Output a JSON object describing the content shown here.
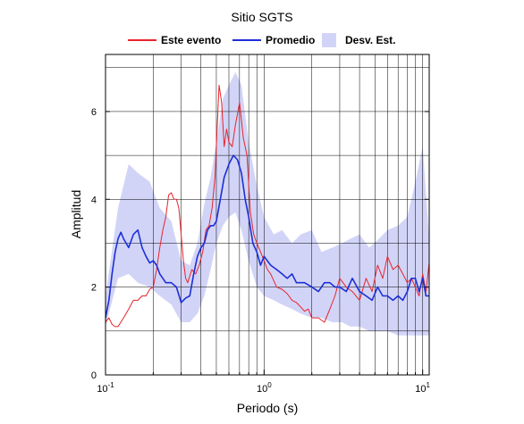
{
  "chart_data": {
    "type": "line",
    "title": "Sitio SGTS",
    "xlabel": "Periodo (s)",
    "ylabel": "Amplitud",
    "xscale": "log",
    "xlim": [
      0.1,
      11
    ],
    "ylim": [
      0,
      7.3
    ],
    "x_ticks": [
      {
        "value": 0.1,
        "base": "10",
        "exp": "-1"
      },
      {
        "value": 1,
        "base": "10",
        "exp": "0"
      },
      {
        "value": 10,
        "base": "10",
        "exp": "1"
      }
    ],
    "y_ticks": [
      {
        "value": 0,
        "label": "0"
      },
      {
        "value": 2,
        "label": "2"
      },
      {
        "value": 4,
        "label": "4"
      },
      {
        "value": 6,
        "label": "6"
      }
    ],
    "grid": true,
    "legend_position": "top-center",
    "legend": [
      {
        "label": "Este evento",
        "kind": "line",
        "color": "#e8242c"
      },
      {
        "label": "Promedio",
        "kind": "line",
        "color": "#1c2fd6"
      },
      {
        "label": "Desv. Est.",
        "kind": "band",
        "color": "#d2d4f7"
      }
    ],
    "band": {
      "name": "Desv. Est.",
      "color": "#d2d4f7",
      "x": [
        0.1,
        0.12,
        0.14,
        0.16,
        0.19,
        0.22,
        0.26,
        0.3,
        0.34,
        0.38,
        0.42,
        0.46,
        0.5,
        0.55,
        0.6,
        0.66,
        0.72,
        0.8,
        0.9,
        1.0,
        1.15,
        1.3,
        1.5,
        1.7,
        2.0,
        2.3,
        2.7,
        3.1,
        3.5,
        4.0,
        4.6,
        5.3,
        6.0,
        7.0,
        8.0,
        9.0,
        10.0,
        11.0
      ],
      "upper": [
        1.8,
        3.8,
        4.8,
        4.6,
        4.4,
        3.8,
        3.5,
        2.6,
        2.5,
        3.0,
        3.9,
        4.5,
        5.3,
        6.3,
        6.6,
        6.9,
        6.6,
        5.3,
        4.3,
        3.6,
        3.2,
        3.3,
        3.0,
        3.2,
        3.3,
        2.8,
        2.9,
        3.0,
        3.1,
        3.2,
        2.9,
        3.1,
        3.3,
        3.4,
        3.6,
        4.4,
        5.2,
        3.1
      ],
      "lower": [
        1.1,
        2.2,
        2.3,
        2.1,
        2.0,
        1.8,
        1.6,
        1.2,
        1.2,
        1.4,
        1.8,
        2.4,
        3.0,
        3.4,
        3.6,
        3.7,
        3.3,
        2.6,
        2.0,
        1.8,
        1.7,
        1.6,
        1.5,
        1.4,
        1.3,
        1.3,
        1.2,
        1.2,
        1.1,
        1.1,
        1.0,
        1.0,
        1.0,
        0.9,
        0.9,
        0.9,
        0.9,
        0.9
      ]
    },
    "series": [
      {
        "name": "Este evento",
        "color": "#e8242c",
        "x": [
          0.1,
          0.105,
          0.11,
          0.115,
          0.12,
          0.13,
          0.14,
          0.15,
          0.16,
          0.17,
          0.18,
          0.19,
          0.2,
          0.21,
          0.22,
          0.23,
          0.24,
          0.25,
          0.26,
          0.27,
          0.28,
          0.29,
          0.3,
          0.31,
          0.32,
          0.33,
          0.35,
          0.37,
          0.39,
          0.41,
          0.43,
          0.45,
          0.47,
          0.49,
          0.5,
          0.52,
          0.54,
          0.56,
          0.58,
          0.6,
          0.63,
          0.66,
          0.7,
          0.74,
          0.78,
          0.82,
          0.86,
          0.9,
          0.95,
          1.0,
          1.05,
          1.1,
          1.2,
          1.3,
          1.4,
          1.5,
          1.6,
          1.7,
          1.8,
          1.9,
          2.0,
          2.2,
          2.4,
          2.6,
          2.8,
          3.0,
          3.3,
          3.6,
          4.0,
          4.4,
          4.8,
          5.2,
          5.6,
          6.0,
          6.5,
          7.0,
          7.5,
          8.0,
          8.5,
          9.0,
          9.5,
          10.0,
          10.5,
          11.0
        ],
        "y": [
          1.2,
          1.3,
          1.15,
          1.1,
          1.1,
          1.3,
          1.5,
          1.7,
          1.7,
          1.8,
          1.8,
          1.95,
          2.0,
          2.4,
          2.9,
          3.3,
          3.6,
          4.1,
          4.15,
          4.0,
          4.0,
          3.8,
          3.2,
          2.6,
          2.2,
          2.1,
          2.4,
          2.3,
          2.5,
          2.8,
          3.3,
          3.4,
          3.8,
          4.5,
          5.2,
          6.6,
          6.2,
          5.2,
          5.6,
          5.3,
          5.2,
          5.7,
          6.2,
          5.4,
          5.0,
          3.7,
          3.2,
          3.0,
          2.8,
          2.6,
          2.4,
          2.3,
          2.0,
          1.95,
          1.85,
          1.7,
          1.65,
          1.55,
          1.45,
          1.5,
          1.3,
          1.3,
          1.2,
          1.5,
          1.8,
          2.2,
          2.0,
          1.9,
          1.7,
          2.2,
          1.9,
          2.5,
          2.2,
          2.7,
          2.4,
          2.5,
          2.3,
          2.1,
          2.2,
          2.0,
          1.8,
          2.3,
          1.9,
          2.55
        ]
      },
      {
        "name": "Promedio",
        "color": "#1c2fd6",
        "x": [
          0.1,
          0.105,
          0.11,
          0.115,
          0.12,
          0.125,
          0.13,
          0.14,
          0.15,
          0.16,
          0.17,
          0.18,
          0.19,
          0.2,
          0.21,
          0.22,
          0.23,
          0.24,
          0.26,
          0.28,
          0.3,
          0.32,
          0.34,
          0.36,
          0.38,
          0.4,
          0.42,
          0.44,
          0.46,
          0.48,
          0.5,
          0.53,
          0.56,
          0.6,
          0.64,
          0.68,
          0.72,
          0.76,
          0.8,
          0.85,
          0.9,
          0.95,
          1.0,
          1.1,
          1.2,
          1.3,
          1.4,
          1.5,
          1.6,
          1.8,
          2.0,
          2.2,
          2.4,
          2.6,
          2.8,
          3.0,
          3.3,
          3.6,
          4.0,
          4.4,
          4.8,
          5.2,
          5.6,
          6.0,
          6.5,
          7.0,
          7.5,
          8.0,
          8.5,
          9.0,
          9.5,
          10.0,
          10.5,
          11.0
        ],
        "y": [
          1.3,
          1.7,
          2.3,
          2.8,
          3.1,
          3.25,
          3.1,
          2.9,
          3.2,
          3.3,
          2.9,
          2.7,
          2.55,
          2.6,
          2.5,
          2.3,
          2.2,
          2.1,
          2.1,
          2.0,
          1.65,
          1.75,
          1.8,
          2.3,
          2.7,
          2.9,
          3.0,
          3.3,
          3.4,
          3.4,
          3.5,
          4.0,
          4.5,
          4.8,
          5.0,
          4.9,
          4.6,
          4.0,
          3.6,
          3.0,
          2.8,
          2.5,
          2.7,
          2.5,
          2.4,
          2.3,
          2.2,
          2.3,
          2.1,
          2.1,
          2.0,
          1.9,
          2.1,
          2.1,
          2.0,
          2.0,
          1.9,
          2.2,
          1.9,
          1.8,
          1.7,
          2.0,
          1.8,
          1.8,
          1.7,
          1.8,
          1.7,
          1.9,
          2.2,
          2.2,
          1.9,
          2.2,
          1.8,
          1.8
        ]
      }
    ]
  }
}
